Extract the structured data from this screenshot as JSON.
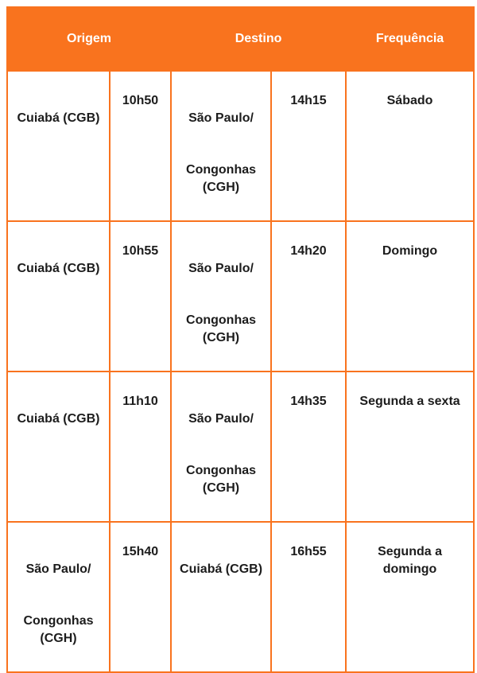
{
  "colors": {
    "accent": "#F9731E",
    "header_text": "#FFFFFF",
    "body_text": "#1C1C1C",
    "background": "#FFFFFF"
  },
  "table": {
    "headers": [
      {
        "label": "Origem"
      },
      {
        "label": "Destino"
      },
      {
        "label": "Frequência"
      }
    ],
    "rows": [
      {
        "origin": [
          "Cuiabá (CGB)"
        ],
        "departure_time": "10h50",
        "destination": [
          "São Paulo/",
          "Congonhas\n(CGH)"
        ],
        "arrival_time": "14h15",
        "frequency": "Sábado"
      },
      {
        "origin": [
          "Cuiabá (CGB)"
        ],
        "departure_time": "10h55",
        "destination": [
          "São Paulo/",
          "Congonhas\n(CGH)"
        ],
        "arrival_time": "14h20",
        "frequency": "Domingo"
      },
      {
        "origin": [
          "Cuiabá (CGB)"
        ],
        "departure_time": "11h10",
        "destination": [
          "São Paulo/",
          "Congonhas\n(CGH)"
        ],
        "arrival_time": "14h35",
        "frequency": "Segunda a sexta"
      },
      {
        "origin": [
          "São Paulo/",
          "Congonhas\n(CGH)"
        ],
        "departure_time": "15h40",
        "destination": [
          "Cuiabá (CGB)"
        ],
        "arrival_time": "16h55",
        "frequency": "Segunda a\ndomingo"
      }
    ]
  }
}
